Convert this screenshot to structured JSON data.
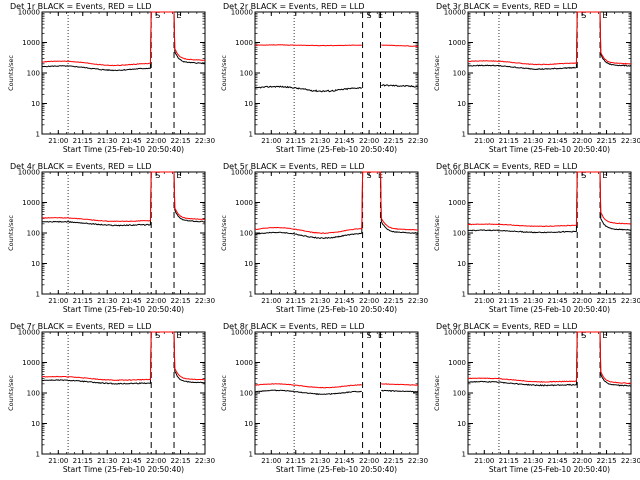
{
  "chart_data": [
    {
      "type": "line",
      "title": "Det 1r BLACK = Events, RED = LLD",
      "xlabel": "Start Time (25-Feb-10 20:50:40)",
      "ylabel": "Counts/sec",
      "ylog": true,
      "ylim": [
        1,
        10000
      ],
      "xlim": [
        "20:50",
        "22:30"
      ],
      "x_ticks": [
        "21:00",
        "21:15",
        "21:30",
        "21:45",
        "22:00",
        "22:15",
        "22:30"
      ],
      "y_ticks": [
        "1",
        "10",
        "100",
        "1000",
        "10000"
      ],
      "markers": [
        {
          "label": "S",
          "x": "22:01"
        },
        {
          "label": "E",
          "x": "22:14"
        }
      ],
      "dotted_lines_x": [
        "21:06"
      ],
      "dashed_lines_x": [
        "21:57",
        "22:11"
      ],
      "series": [
        {
          "name": "Events",
          "color": "#000000",
          "baseline": 160,
          "slope": -0.2,
          "wave": 0.1,
          "noise": 0.03,
          "after": 230,
          "spike": true
        },
        {
          "name": "LLD",
          "color": "#ff0000",
          "baseline": 230,
          "slope": -0.2,
          "wave": 0.1,
          "noise": 0.02,
          "after": 290,
          "spike": true
        }
      ]
    },
    {
      "type": "line",
      "title": "Det 2r BLACK = Events, RED = LLD",
      "xlabel": "Start Time (25-Feb-10 20:50:40)",
      "ylabel": "Counts/sec",
      "ylog": true,
      "ylim": [
        1,
        10000
      ],
      "xlim": [
        "20:50",
        "22:30"
      ],
      "x_ticks": [
        "21:00",
        "21:15",
        "21:30",
        "21:45",
        "22:00",
        "22:15",
        "22:30"
      ],
      "y_ticks": [
        "1",
        "10",
        "100",
        "1000",
        "10000"
      ],
      "markers": [
        {
          "label": "S",
          "x": "22:00"
        },
        {
          "label": "E",
          "x": "22:07"
        }
      ],
      "dotted_lines_x": [
        "21:14"
      ],
      "dashed_lines_x": [
        "21:56",
        "22:07"
      ],
      "series": [
        {
          "name": "Events",
          "color": "#000000",
          "baseline": 32,
          "slope": -0.1,
          "wave": 0.14,
          "noise": 0.05,
          "after": 40,
          "spike": false
        },
        {
          "name": "LLD",
          "color": "#ff0000",
          "baseline": 820,
          "slope": -0.02,
          "wave": 0.02,
          "noise": 0.015,
          "after": 830,
          "spike": false
        }
      ]
    },
    {
      "type": "line",
      "title": "Det 3r BLACK = Events, RED = LLD",
      "xlabel": "Start Time (25-Feb-10 20:50:40)",
      "ylabel": "Counts/sec",
      "ylog": true,
      "ylim": [
        1,
        10000
      ],
      "xlim": [
        "20:50",
        "22:30"
      ],
      "x_ticks": [
        "21:00",
        "21:15",
        "21:30",
        "21:45",
        "22:00",
        "22:15",
        "22:30"
      ],
      "y_ticks": [
        "1",
        "10",
        "100",
        "1000",
        "10000"
      ],
      "markers": [
        {
          "label": "S",
          "x": "22:01"
        },
        {
          "label": "E",
          "x": "22:14"
        }
      ],
      "dotted_lines_x": [
        "21:09"
      ],
      "dashed_lines_x": [
        "21:57",
        "22:11"
      ],
      "series": [
        {
          "name": "Events",
          "color": "#000000",
          "baseline": 170,
          "slope": -0.2,
          "wave": 0.08,
          "noise": 0.03,
          "after": 190,
          "spike": true
        },
        {
          "name": "LLD",
          "color": "#ff0000",
          "baseline": 240,
          "slope": -0.2,
          "wave": 0.08,
          "noise": 0.02,
          "after": 220,
          "spike": true
        }
      ]
    },
    {
      "type": "line",
      "title": "Det 4r BLACK = Events, RED = LLD",
      "xlabel": "Start Time (25-Feb-10 20:50:40)",
      "ylabel": "Counts/sec",
      "ylog": true,
      "ylim": [
        1,
        10000
      ],
      "xlim": [
        "20:50",
        "22:30"
      ],
      "x_ticks": [
        "21:00",
        "21:15",
        "21:30",
        "21:45",
        "22:00",
        "22:15",
        "22:30"
      ],
      "y_ticks": [
        "1",
        "10",
        "100",
        "1000",
        "10000"
      ],
      "markers": [
        {
          "label": "S",
          "x": "22:01"
        },
        {
          "label": "E",
          "x": "22:14"
        }
      ],
      "dotted_lines_x": [
        "21:06"
      ],
      "dashed_lines_x": [
        "21:57",
        "22:11"
      ],
      "series": [
        {
          "name": "Events",
          "color": "#000000",
          "baseline": 230,
          "slope": -0.25,
          "wave": 0.06,
          "noise": 0.03,
          "after": 260,
          "spike": true
        },
        {
          "name": "LLD",
          "color": "#ff0000",
          "baseline": 310,
          "slope": -0.25,
          "wave": 0.06,
          "noise": 0.02,
          "after": 310,
          "spike": true
        }
      ]
    },
    {
      "type": "line",
      "title": "Det 5r BLACK = Events, RED = LLD",
      "xlabel": "Start Time (25-Feb-10 20:50:40)",
      "ylabel": "Counts/sec",
      "ylog": true,
      "ylim": [
        1,
        10000
      ],
      "xlim": [
        "20:50",
        "22:30"
      ],
      "x_ticks": [
        "21:00",
        "21:15",
        "21:30",
        "21:45",
        "22:00",
        "22:15",
        "22:30"
      ],
      "y_ticks": [
        "1",
        "10",
        "100",
        "1000",
        "10000"
      ],
      "markers": [
        {
          "label": "S",
          "x": "22:00"
        },
        {
          "label": "E",
          "x": "22:07"
        }
      ],
      "dotted_lines_x": [
        "21:14"
      ],
      "dashed_lines_x": [
        "21:56",
        "22:07"
      ],
      "series": [
        {
          "name": "Events",
          "color": "#000000",
          "baseline": 90,
          "slope": -0.1,
          "wave": 0.18,
          "noise": 0.03,
          "after": 110,
          "spike": true
        },
        {
          "name": "LLD",
          "color": "#ff0000",
          "baseline": 130,
          "slope": -0.1,
          "wave": 0.18,
          "noise": 0.02,
          "after": 140,
          "spike": true
        }
      ]
    },
    {
      "type": "line",
      "title": "Det 6r BLACK = Events, RED = LLD",
      "xlabel": "Start Time (25-Feb-10 20:50:40)",
      "ylabel": "Counts/sec",
      "ylog": true,
      "ylim": [
        1,
        10000
      ],
      "xlim": [
        "20:50",
        "22:30"
      ],
      "x_ticks": [
        "21:00",
        "21:15",
        "21:30",
        "21:45",
        "22:00",
        "22:15",
        "22:30"
      ],
      "y_ticks": [
        "1",
        "10",
        "100",
        "1000",
        "10000"
      ],
      "markers": [
        {
          "label": "S",
          "x": "22:01"
        },
        {
          "label": "E",
          "x": "22:14"
        }
      ],
      "dotted_lines_x": [
        "21:09"
      ],
      "dashed_lines_x": [
        "21:57",
        "22:11"
      ],
      "series": [
        {
          "name": "Events",
          "color": "#000000",
          "baseline": 120,
          "slope": -0.12,
          "wave": 0.05,
          "noise": 0.03,
          "after": 140,
          "spike": true
        },
        {
          "name": "LLD",
          "color": "#ff0000",
          "baseline": 190,
          "slope": -0.12,
          "wave": 0.05,
          "noise": 0.02,
          "after": 220,
          "spike": true
        }
      ]
    },
    {
      "type": "line",
      "title": "Det 7r BLACK = Events, RED = LLD",
      "xlabel": "Start Time (25-Feb-10 20:50:40)",
      "ylabel": "Counts/sec",
      "ylog": true,
      "ylim": [
        1,
        10000
      ],
      "xlim": [
        "20:50",
        "22:30"
      ],
      "x_ticks": [
        "21:00",
        "21:15",
        "21:30",
        "21:45",
        "22:00",
        "22:15",
        "22:30"
      ],
      "y_ticks": [
        "1",
        "10",
        "100",
        "1000",
        "10000"
      ],
      "markers": [
        {
          "label": "S",
          "x": "22:01"
        },
        {
          "label": "E",
          "x": "22:14"
        }
      ],
      "dotted_lines_x": [
        "21:06"
      ],
      "dashed_lines_x": [
        "21:57",
        "22:11"
      ],
      "series": [
        {
          "name": "Events",
          "color": "#000000",
          "baseline": 260,
          "slope": -0.25,
          "wave": 0.06,
          "noise": 0.03,
          "after": 240,
          "spike": true
        },
        {
          "name": "LLD",
          "color": "#ff0000",
          "baseline": 340,
          "slope": -0.25,
          "wave": 0.06,
          "noise": 0.02,
          "after": 300,
          "spike": true
        }
      ]
    },
    {
      "type": "line",
      "title": "Det 8r BLACK = Events, RED = LLD",
      "xlabel": "Start Time (25-Feb-10 20:50:40)",
      "ylabel": "Counts/sec",
      "ylog": true,
      "ylim": [
        1,
        10000
      ],
      "xlim": [
        "20:50",
        "22:30"
      ],
      "x_ticks": [
        "21:00",
        "21:15",
        "21:30",
        "21:45",
        "22:00",
        "22:15",
        "22:30"
      ],
      "y_ticks": [
        "1",
        "10",
        "100",
        "1000",
        "10000"
      ],
      "markers": [
        {
          "label": "S",
          "x": "22:00"
        },
        {
          "label": "E",
          "x": "22:07"
        }
      ],
      "dotted_lines_x": [
        "21:14"
      ],
      "dashed_lines_x": [
        "21:56",
        "22:07"
      ],
      "series": [
        {
          "name": "Events",
          "color": "#000000",
          "baseline": 110,
          "slope": -0.08,
          "wave": 0.12,
          "noise": 0.03,
          "after": 120,
          "spike": false
        },
        {
          "name": "LLD",
          "color": "#ff0000",
          "baseline": 180,
          "slope": -0.08,
          "wave": 0.12,
          "noise": 0.02,
          "after": 200,
          "spike": false
        }
      ]
    },
    {
      "type": "line",
      "title": "Det 9r BLACK = Events, RED = LLD",
      "xlabel": "Start Time (25-Feb-10 20:50:40)",
      "ylabel": "Counts/sec",
      "ylog": true,
      "ylim": [
        1,
        10000
      ],
      "xlim": [
        "20:50",
        "22:30"
      ],
      "x_ticks": [
        "21:00",
        "21:15",
        "21:30",
        "21:45",
        "22:00",
        "22:15",
        "22:30"
      ],
      "y_ticks": [
        "1",
        "10",
        "100",
        "1000",
        "10000"
      ],
      "markers": [
        {
          "label": "S",
          "x": "22:01"
        },
        {
          "label": "E",
          "x": "22:14"
        }
      ],
      "dotted_lines_x": [
        "21:09"
      ],
      "dashed_lines_x": [
        "21:57",
        "22:11"
      ],
      "series": [
        {
          "name": "Events",
          "color": "#000000",
          "baseline": 230,
          "slope": -0.25,
          "wave": 0.06,
          "noise": 0.03,
          "after": 190,
          "spike": true
        },
        {
          "name": "LLD",
          "color": "#ff0000",
          "baseline": 300,
          "slope": -0.25,
          "wave": 0.06,
          "noise": 0.02,
          "after": 230,
          "spike": true
        }
      ]
    }
  ]
}
